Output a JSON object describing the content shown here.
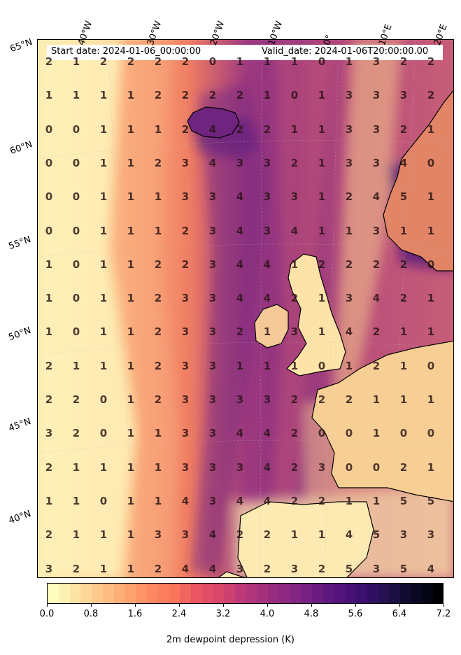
{
  "header": {
    "start_date": "Start date: 2024-01-06_00:00:00",
    "valid_date": "Valid_date: 2024-01-06T20:00:00.00"
  },
  "longitude_labels": [
    "40°W",
    "30°W",
    "20°W",
    "10°W",
    "0°",
    "10°E",
    "20°E"
  ],
  "latitude_labels": [
    "65°N",
    "60°N",
    "55°N",
    "50°N",
    "45°N",
    "40°N"
  ],
  "grid_values": [
    [
      2,
      1,
      2,
      2,
      2,
      2,
      0,
      1,
      1,
      1,
      0,
      1,
      3,
      2,
      2
    ],
    [
      1,
      1,
      1,
      1,
      2,
      2,
      2,
      2,
      1,
      0,
      1,
      3,
      3,
      3,
      2
    ],
    [
      0,
      0,
      1,
      1,
      1,
      2,
      4,
      2,
      2,
      1,
      1,
      3,
      3,
      2,
      1
    ],
    [
      0,
      0,
      1,
      1,
      2,
      3,
      4,
      3,
      3,
      2,
      1,
      3,
      3,
      4,
      0
    ],
    [
      0,
      0,
      1,
      1,
      1,
      3,
      3,
      4,
      3,
      3,
      1,
      2,
      4,
      5,
      1
    ],
    [
      0,
      0,
      1,
      1,
      1,
      2,
      3,
      4,
      3,
      4,
      1,
      1,
      3,
      1,
      1
    ],
    [
      1,
      0,
      1,
      1,
      2,
      2,
      3,
      4,
      4,
      1,
      2,
      2,
      2,
      2,
      0
    ],
    [
      1,
      0,
      1,
      1,
      2,
      3,
      3,
      4,
      4,
      2,
      1,
      3,
      4,
      2,
      1
    ],
    [
      1,
      0,
      1,
      1,
      2,
      3,
      3,
      2,
      1,
      3,
      1,
      4,
      2,
      1,
      1
    ],
    [
      2,
      1,
      1,
      1,
      2,
      3,
      3,
      1,
      1,
      1,
      0,
      1,
      2,
      1,
      0
    ],
    [
      2,
      2,
      0,
      1,
      2,
      3,
      3,
      3,
      3,
      2,
      2,
      2,
      1,
      1,
      1
    ],
    [
      3,
      2,
      0,
      1,
      1,
      3,
      3,
      4,
      4,
      2,
      0,
      0,
      1,
      0,
      0
    ],
    [
      2,
      1,
      1,
      1,
      1,
      3,
      3,
      3,
      4,
      2,
      3,
      0,
      0,
      2,
      1
    ],
    [
      1,
      1,
      0,
      1,
      1,
      4,
      3,
      4,
      4,
      2,
      2,
      1,
      1,
      5,
      5
    ],
    [
      2,
      1,
      1,
      1,
      3,
      3,
      4,
      2,
      2,
      1,
      1,
      4,
      5,
      3,
      3
    ],
    [
      3,
      2,
      1,
      1,
      2,
      4,
      4,
      3,
      2,
      3,
      2,
      5,
      3,
      5,
      4
    ]
  ],
  "colorbar": {
    "ticks": [
      "0.0",
      "0.8",
      "1.6",
      "2.4",
      "3.2",
      "4.0",
      "4.8",
      "5.6",
      "6.4",
      "7.2"
    ],
    "min": 0.0,
    "max": 7.2,
    "label": "2m dewpoint depression (K)",
    "colormap": "magma_r",
    "colors": [
      "#fcfdbf",
      "#fde2a3",
      "#fec488",
      "#fea873",
      "#fc8961",
      "#f8765c",
      "#e85362",
      "#d6456c",
      "#b73779",
      "#9c2e7f",
      "#832681",
      "#6a1c81",
      "#51127c",
      "#36106b",
      "#1d1147",
      "#0a0822",
      "#000004"
    ]
  }
}
